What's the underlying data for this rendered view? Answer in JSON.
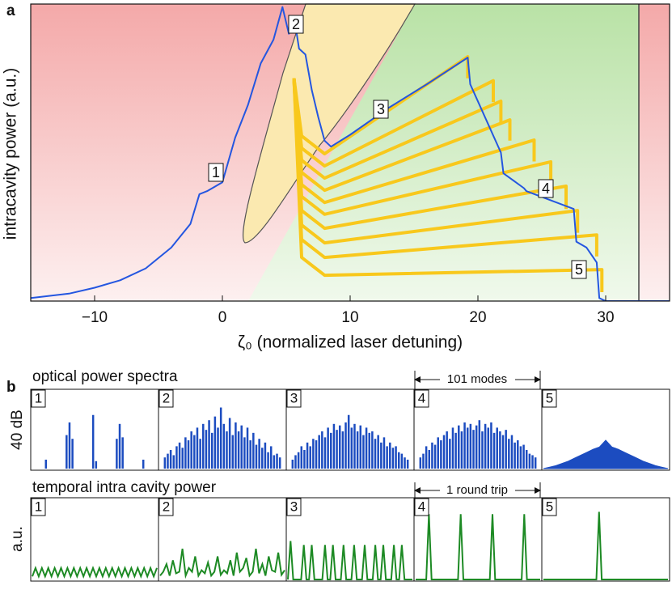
{
  "chart_data": [
    {
      "type": "line",
      "panel_label": "a",
      "xlabel": "ζ₀ (normalized laser detuning)",
      "ylabel": "intracavity power (a.u.)",
      "xlim": [
        -15,
        35
      ],
      "ylim": [
        0,
        10
      ],
      "xticks": [
        {
          "value": -10,
          "label": "−10"
        },
        0,
        10,
        20,
        30
      ],
      "annotations": [
        "1",
        "2",
        "3",
        "4",
        "5"
      ],
      "series": [
        {
          "color": "#f8c81c",
          "x": [
            5.6,
            6.2,
            8,
            19.2,
            19.2
          ],
          "values": [
            7.5,
            5.56,
            4.96,
            8.23,
            7.5
          ]
        },
        {
          "color": "#f8c81c",
          "x": [
            5.6,
            6.2,
            8,
            21.2,
            21.2
          ],
          "values": [
            7.5,
            5.15,
            4.55,
            7.42,
            6.7
          ]
        },
        {
          "color": "#f8c81c",
          "x": [
            5.6,
            6.2,
            8,
            21.8,
            21.8
          ],
          "values": [
            7.5,
            4.74,
            4.14,
            6.73,
            6.0
          ]
        },
        {
          "color": "#f8c81c",
          "x": [
            5.6,
            6.2,
            8,
            22.5,
            22.5
          ],
          "values": [
            7.5,
            4.33,
            3.73,
            6.1,
            5.4
          ]
        },
        {
          "color": "#f8c81c",
          "x": [
            5.6,
            6.2,
            8,
            24.4,
            24.4
          ],
          "values": [
            7.5,
            3.92,
            3.32,
            5.42,
            4.7
          ]
        },
        {
          "color": "#f8c81c",
          "x": [
            5.6,
            6.2,
            8,
            25.7,
            25.7
          ],
          "values": [
            7.5,
            3.52,
            2.92,
            4.69,
            4.0
          ]
        },
        {
          "color": "#f8c81c",
          "x": [
            5.6,
            6.2,
            8,
            26.9,
            26.9
          ],
          "values": [
            7.5,
            3.05,
            2.45,
            3.87,
            3.1
          ]
        },
        {
          "color": "#f8c81c",
          "x": [
            5.6,
            6.2,
            8,
            27.8,
            27.8
          ],
          "values": [
            7.5,
            2.56,
            1.96,
            3.05,
            2.3
          ]
        },
        {
          "color": "#f8c81c",
          "x": [
            5.6,
            6.2,
            8,
            29.3,
            29.3
          ],
          "values": [
            7.5,
            2.07,
            1.47,
            2.23,
            1.5
          ]
        },
        {
          "color": "#f8c81c",
          "x": [
            5.6,
            6.2,
            8,
            29.7,
            29.7
          ],
          "values": [
            7.5,
            1.47,
            0.87,
            1.06,
            0.3
          ]
        },
        {
          "color": "#2456e0",
          "x": [
            -15,
            -12,
            -10,
            -8,
            -6,
            -4,
            -2.5,
            -1.8,
            -1.2,
            0,
            1,
            2,
            3,
            4,
            4.7,
            5.2,
            5.6,
            6,
            6.5,
            7,
            7.5,
            8,
            8.5,
            10,
            13,
            16,
            19.2,
            19.4,
            21.8,
            22.0,
            23.6,
            23.8,
            27.5,
            27.7,
            28.5,
            29.3,
            29.5,
            30,
            33,
            35
          ],
          "values": [
            0.1,
            0.25,
            0.45,
            0.7,
            1.1,
            1.8,
            2.6,
            3.6,
            3.7,
            4.0,
            5.5,
            6.6,
            8.0,
            8.8,
            9.9,
            9.0,
            9.6,
            8.5,
            8.3,
            7.1,
            6.2,
            5.4,
            5.2,
            5.6,
            6.5,
            7.3,
            8.2,
            7.3,
            5.0,
            4.3,
            3.8,
            3.7,
            3.1,
            2.0,
            1.8,
            1.3,
            0.1,
            0,
            0,
            0
          ]
        }
      ]
    },
    {
      "type": "spectra",
      "panel_label": "b",
      "title": "optical power spectra",
      "ylabel": "40 dB",
      "annotation": "101 modes",
      "color": "#1c4cc0",
      "ylim": [
        0,
        1
      ],
      "panels": [
        {
          "label": "1",
          "values": [
            0,
            0,
            0,
            0.12,
            0,
            0,
            0,
            0,
            0,
            0,
            0.45,
            0.62,
            0.4,
            0,
            0,
            0,
            0,
            0,
            0,
            0.72,
            0.1,
            0,
            0,
            0,
            0,
            0,
            0,
            0.4,
            0.6,
            0.42,
            0,
            0,
            0,
            0,
            0,
            0,
            0.12,
            0,
            0,
            0
          ]
        },
        {
          "label": "2",
          "values": [
            0.15,
            0.2,
            0.25,
            0.18,
            0.3,
            0.35,
            0.28,
            0.42,
            0.38,
            0.5,
            0.45,
            0.55,
            0.4,
            0.6,
            0.52,
            0.65,
            0.48,
            0.7,
            0.55,
            0.82,
            0.6,
            0.5,
            0.68,
            0.45,
            0.62,
            0.5,
            0.58,
            0.42,
            0.55,
            0.38,
            0.48,
            0.32,
            0.4,
            0.28,
            0.35,
            0.22,
            0.3,
            0.18,
            0.2,
            0.15
          ]
        },
        {
          "label": "3",
          "values": [
            0.12,
            0.18,
            0.22,
            0.3,
            0.25,
            0.35,
            0.3,
            0.4,
            0.38,
            0.45,
            0.5,
            0.42,
            0.55,
            0.48,
            0.6,
            0.52,
            0.58,
            0.5,
            0.62,
            0.72,
            0.55,
            0.6,
            0.5,
            0.58,
            0.45,
            0.55,
            0.48,
            0.5,
            0.4,
            0.45,
            0.35,
            0.42,
            0.3,
            0.35,
            0.28,
            0.3,
            0.22,
            0.2,
            0.15,
            0.12
          ]
        },
        {
          "label": "4",
          "values": [
            0.15,
            0.2,
            0.3,
            0.25,
            0.35,
            0.32,
            0.42,
            0.38,
            0.45,
            0.5,
            0.4,
            0.55,
            0.48,
            0.58,
            0.5,
            0.62,
            0.55,
            0.6,
            0.52,
            0.58,
            0.65,
            0.5,
            0.6,
            0.55,
            0.62,
            0.48,
            0.55,
            0.5,
            0.45,
            0.52,
            0.4,
            0.45,
            0.35,
            0.38,
            0.3,
            0.32,
            0.25,
            0.2,
            0.18,
            0.15
          ]
        },
        {
          "label": "5",
          "fill": true,
          "values": [
            0,
            0.02,
            0.04,
            0.07,
            0.1,
            0.14,
            0.18,
            0.22,
            0.26,
            0.29,
            0.38,
            0.29,
            0.26,
            0.22,
            0.18,
            0.14,
            0.1,
            0.07,
            0.04,
            0.02,
            0
          ]
        }
      ]
    },
    {
      "type": "temporal",
      "title": "temporal intra cavity power",
      "ylabel": "a.u.",
      "annotation": "1 round trip",
      "color": "#1d8a24",
      "ylim": [
        0,
        1
      ],
      "panels": [
        {
          "label": "1",
          "values": [
            0.04,
            0.15,
            0.04,
            0.15,
            0.04,
            0.15,
            0.04,
            0.15,
            0.04,
            0.15,
            0.04,
            0.15,
            0.04,
            0.15,
            0.04,
            0.15,
            0.04,
            0.15,
            0.04,
            0.15,
            0.04,
            0.15,
            0.04,
            0.15,
            0.04,
            0.15,
            0.04,
            0.15,
            0.04,
            0.15,
            0.04,
            0.15,
            0.04,
            0.15,
            0.04,
            0.15,
            0.04,
            0.15,
            0.04,
            0.15
          ]
        },
        {
          "label": "2",
          "values": [
            0.05,
            0.1,
            0.2,
            0.05,
            0.25,
            0.08,
            0.1,
            0.4,
            0.05,
            0.15,
            0.1,
            0.3,
            0.05,
            0.12,
            0.08,
            0.22,
            0.05,
            0.1,
            0.3,
            0.06,
            0.12,
            0.08,
            0.25,
            0.05,
            0.35,
            0.1,
            0.15,
            0.28,
            0.05,
            0.1,
            0.4,
            0.08,
            0.2,
            0.05,
            0.3,
            0.12,
            0.1,
            0.35,
            0.06,
            0.12
          ]
        },
        {
          "label": "3",
          "values": [
            0,
            0.5,
            0,
            0,
            0,
            0,
            0.45,
            0,
            0,
            0.45,
            0,
            0,
            0,
            0,
            0.45,
            0,
            0,
            0.45,
            0,
            0,
            0,
            0.45,
            0,
            0,
            0,
            0.45,
            0,
            0,
            0,
            0.45,
            0,
            0,
            0,
            0.45,
            0,
            0,
            0.45,
            0,
            0,
            0,
            0.45,
            0,
            0,
            0.45,
            0,
            0,
            0,
            0
          ]
        },
        {
          "label": "4",
          "values": [
            0,
            0,
            0,
            0,
            0,
            0.85,
            0,
            0,
            0,
            0,
            0,
            0,
            0,
            0,
            0,
            0,
            0,
            0.85,
            0,
            0,
            0,
            0,
            0,
            0,
            0,
            0,
            0,
            0,
            0,
            0.85,
            0,
            0,
            0,
            0,
            0,
            0,
            0,
            0,
            0,
            0,
            0,
            0.85,
            0,
            0,
            0,
            0,
            0,
            0
          ]
        },
        {
          "label": "5",
          "values": [
            0,
            0,
            0,
            0,
            0,
            0,
            0,
            0,
            0,
            0,
            0,
            0,
            0,
            0,
            0,
            0,
            0,
            0,
            0,
            0,
            0,
            0.88,
            0,
            0,
            0,
            0,
            0,
            0,
            0,
            0,
            0,
            0,
            0,
            0,
            0,
            0,
            0,
            0,
            0,
            0,
            0,
            0,
            0,
            0,
            0,
            0,
            0,
            0
          ]
        }
      ]
    }
  ]
}
